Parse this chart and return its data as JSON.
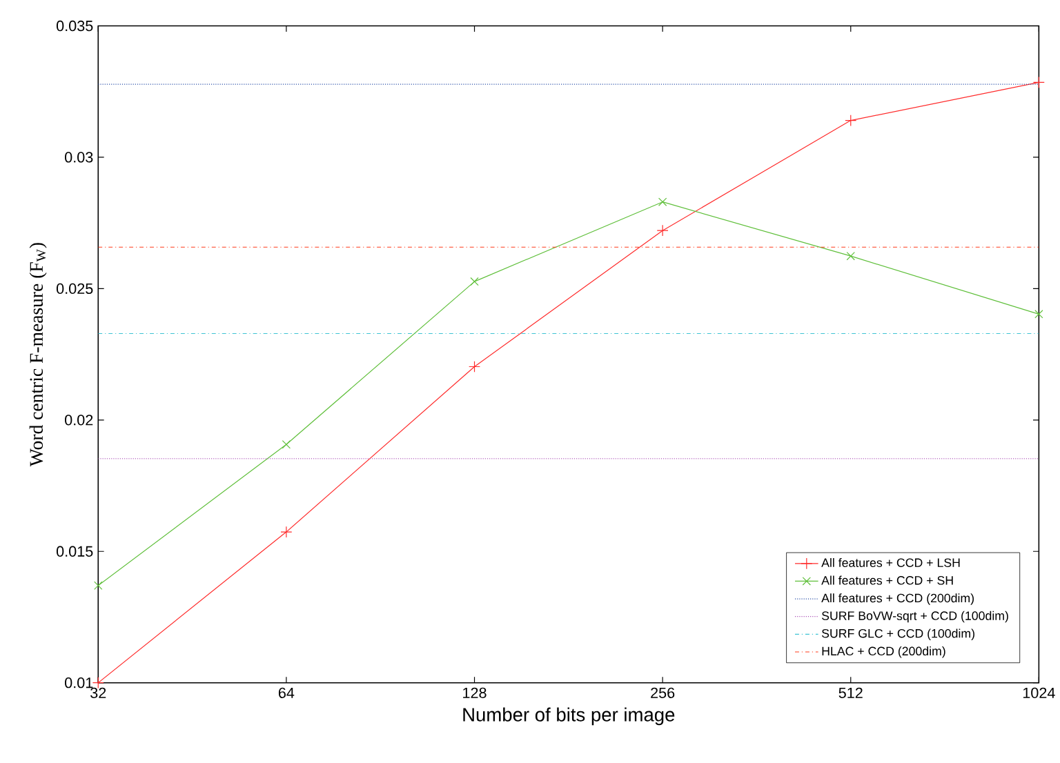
{
  "chart_data": {
    "type": "line",
    "xlabel": "Number of bits per image",
    "ylabel": "Word centric F-measure (F$_{W}$)",
    "log": "x",
    "xlim": [
      32,
      1024
    ],
    "xticks": [
      32,
      64,
      128,
      256,
      512,
      1024
    ],
    "ylim": [
      0.01,
      0.035
    ],
    "yticks": [
      0.01,
      0.015,
      0.02,
      0.025,
      0.03,
      0.035
    ],
    "legend": "bottom right",
    "grid": false,
    "series": [
      {
        "name": "All features + CCD + LSH",
        "color": "#ff2a2a",
        "marker": "cross",
        "line_style": "solid",
        "x": [
          32,
          64,
          128,
          256,
          512,
          1024
        ],
        "values": [
          0.01,
          0.01574,
          0.02203,
          0.02721,
          0.0314,
          0.03285
        ]
      },
      {
        "name": "All features + CCD + SH",
        "color": "#5fbf3a",
        "marker": "x",
        "line_style": "solid",
        "x": [
          32,
          64,
          128,
          256,
          512,
          1024
        ],
        "values": [
          0.0137,
          0.01907,
          0.02527,
          0.0283,
          0.02624,
          0.02403
        ]
      },
      {
        "name": "All features + CCD (200dim)",
        "color": "#2a4fa8",
        "marker": "none",
        "line_style": "dotted",
        "x": [
          32,
          1024
        ],
        "values": [
          0.03278,
          0.03278
        ]
      },
      {
        "name": "SURF BoVW-sqrt + CCD (100dim)",
        "color": "#a94fb5",
        "marker": "none",
        "line_style": "dotted",
        "x": [
          32,
          1024
        ],
        "values": [
          0.01853,
          0.01853
        ]
      },
      {
        "name": "SURF GLC + CCD (100dim)",
        "color": "#3cc3d3",
        "marker": "none",
        "line_style": "dashdot",
        "x": [
          32,
          1024
        ],
        "values": [
          0.02329,
          0.02329
        ]
      },
      {
        "name": "HLAC + CCD (200dim)",
        "color": "#ff3a1a",
        "marker": "none",
        "line_style": "dashdot",
        "x": [
          32,
          1024
        ],
        "values": [
          0.02658,
          0.02658
        ]
      }
    ]
  }
}
